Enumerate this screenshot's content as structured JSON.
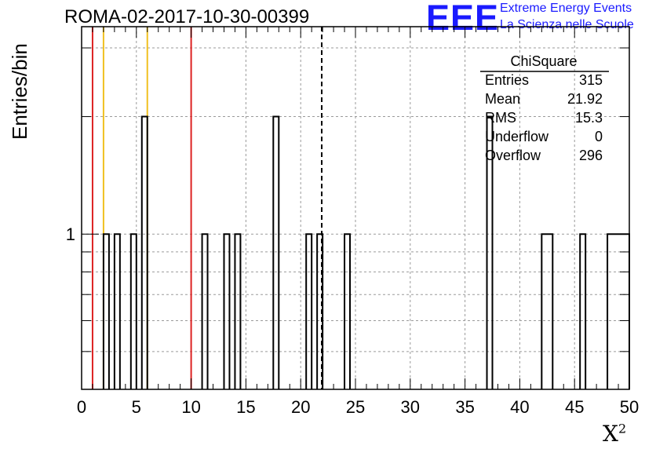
{
  "header": {
    "title": "ROMA-02-2017-10-30-00399",
    "logo_text": "EEE",
    "logo_line1": "Extreme Energy Events",
    "logo_line2": "La Scienza nelle Scuole"
  },
  "stats_box": {
    "title": "ChiSquare",
    "rows": [
      {
        "label": "Entries",
        "value": "315"
      },
      {
        "label": "Mean",
        "value": "21.92"
      },
      {
        "label": "RMS",
        "value": "15.3"
      },
      {
        "label": "Underflow",
        "value": "0"
      },
      {
        "label": "Overflow",
        "value": "296"
      }
    ]
  },
  "colors": {
    "red_line": "#dd2222",
    "yellow_line": "#f0c020",
    "logo": "#1a1aff"
  },
  "chart_data": {
    "type": "bar",
    "histogram": true,
    "title": "ROMA-02-2017-10-30-00399",
    "xlabel": "X",
    "xlabel_superscript": "2",
    "ylabel": "Entries/bin",
    "xlim": [
      0,
      50
    ],
    "ylim": [
      0.4,
      3.4
    ],
    "yscale": "log",
    "bin_width": 0.5,
    "grid": true,
    "x_ticks": [
      0,
      5,
      10,
      15,
      20,
      25,
      30,
      35,
      40,
      45,
      50
    ],
    "y_tick_labels": [
      {
        "value": 1,
        "label": "1"
      }
    ],
    "bins": [
      {
        "x0": 2.0,
        "x1": 2.5,
        "count": 1
      },
      {
        "x0": 3.0,
        "x1": 3.5,
        "count": 1
      },
      {
        "x0": 4.5,
        "x1": 5.0,
        "count": 1
      },
      {
        "x0": 5.5,
        "x1": 6.0,
        "count": 2
      },
      {
        "x0": 11.0,
        "x1": 11.5,
        "count": 1
      },
      {
        "x0": 13.0,
        "x1": 13.5,
        "count": 1
      },
      {
        "x0": 14.0,
        "x1": 14.5,
        "count": 1
      },
      {
        "x0": 17.5,
        "x1": 18.0,
        "count": 2
      },
      {
        "x0": 20.5,
        "x1": 21.0,
        "count": 1
      },
      {
        "x0": 21.5,
        "x1": 22.0,
        "count": 1
      },
      {
        "x0": 24.0,
        "x1": 24.5,
        "count": 1
      },
      {
        "x0": 37.0,
        "x1": 37.5,
        "count": 2
      },
      {
        "x0": 42.0,
        "x1": 43.0,
        "count": 1
      },
      {
        "x0": 45.5,
        "x1": 46.0,
        "count": 1
      },
      {
        "x0": 48.0,
        "x1": 50.0,
        "count": 1
      }
    ],
    "vertical_lines": [
      {
        "x": 1.0,
        "color": "red"
      },
      {
        "x": 2.0,
        "color": "yellow"
      },
      {
        "x": 6.0,
        "color": "yellow"
      },
      {
        "x": 10.0,
        "color": "red"
      },
      {
        "x": 21.92,
        "color": "black",
        "dashed": true
      }
    ]
  }
}
